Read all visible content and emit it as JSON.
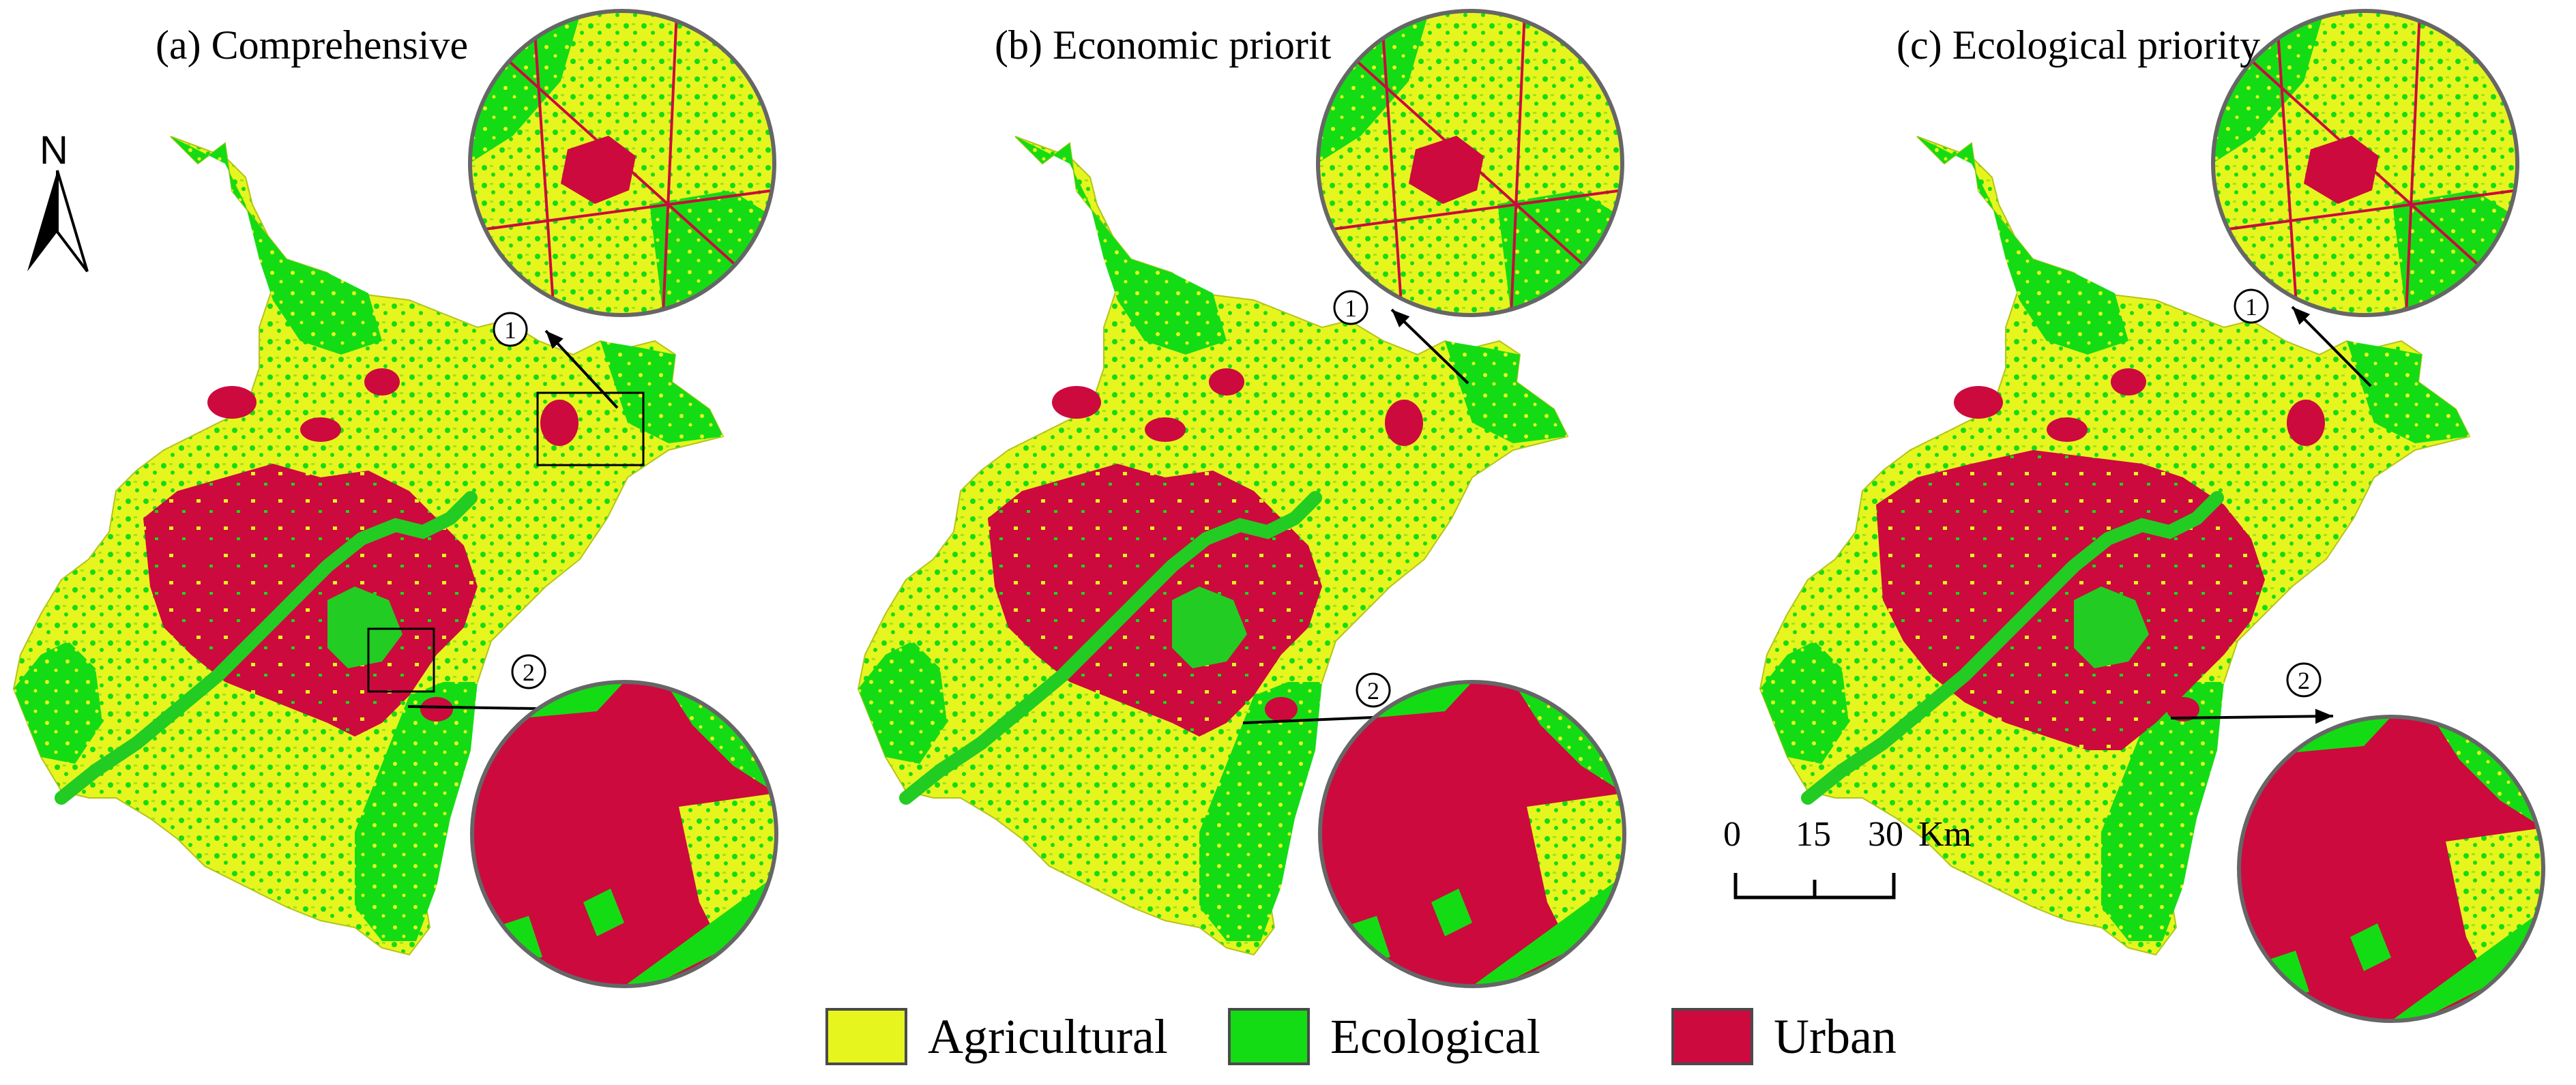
{
  "panels": [
    {
      "label": "(a) Comprehensive",
      "markers": [
        "①",
        "②"
      ]
    },
    {
      "label": "(b) Economic priorit",
      "markers": [
        "①",
        "②"
      ]
    },
    {
      "label": "(c) Ecological priority",
      "markers": [
        "①",
        "②"
      ]
    }
  ],
  "north_arrow": {
    "label": "N"
  },
  "scale_bar": {
    "ticks": [
      "0",
      "15",
      "30"
    ],
    "unit": "Km"
  },
  "legend": [
    {
      "label": "Agricultural",
      "color": "#e6f51e"
    },
    {
      "label": "Ecological",
      "color": "#14dc14"
    },
    {
      "label": "Urban",
      "color": "#cc0a3e"
    }
  ],
  "colors": {
    "agricultural": "#e6f51e",
    "ecological": "#14dc14",
    "urban": "#cc0a3e",
    "river": "#22cc22"
  }
}
